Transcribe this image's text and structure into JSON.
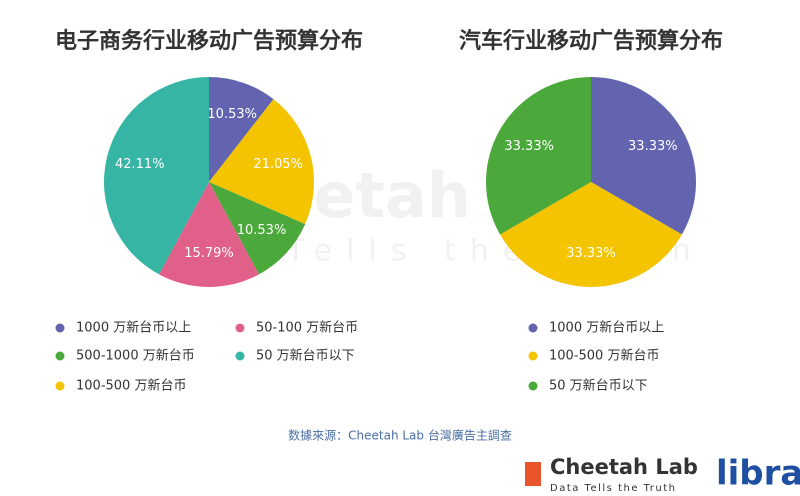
{
  "chart_data": [
    {
      "type": "pie",
      "title": "电子商务行业移动广告预算分布",
      "categories": [
        "1000 万新台币以上",
        "100-500 万新台币",
        "500-1000 万新台币",
        "50-100 万新台币",
        "50 万新台币以下"
      ],
      "values": [
        10.53,
        21.05,
        10.53,
        15.79,
        42.11
      ],
      "value_labels": [
        "10.53%",
        "21.05%",
        "10.53%",
        "15.79%",
        "42.11%"
      ],
      "colors": [
        "#6264b0",
        "#f5c400",
        "#4aa93a",
        "#e0608a",
        "#36b5a5"
      ]
    },
    {
      "type": "pie",
      "title": "汽车行业移动广告预算分布",
      "categories": [
        "1000 万新台币以上",
        "100-500 万新台币",
        "50 万新台币以下"
      ],
      "values": [
        33.33,
        33.33,
        33.33
      ],
      "value_labels": [
        "33.33%",
        "33.33%",
        "33.33%"
      ],
      "colors": [
        "#6264b0",
        "#f5c400",
        "#4aa93a"
      ]
    }
  ],
  "source": "数據來源：Cheetah Lab 台灣廣告主調查",
  "watermark": {
    "name": "Cheetah Lab",
    "tagline": "Data Tells the Truth"
  },
  "logo": {
    "name": "Cheetah Lab",
    "tagline": "Data Tells the Truth",
    "brand": "libra"
  }
}
